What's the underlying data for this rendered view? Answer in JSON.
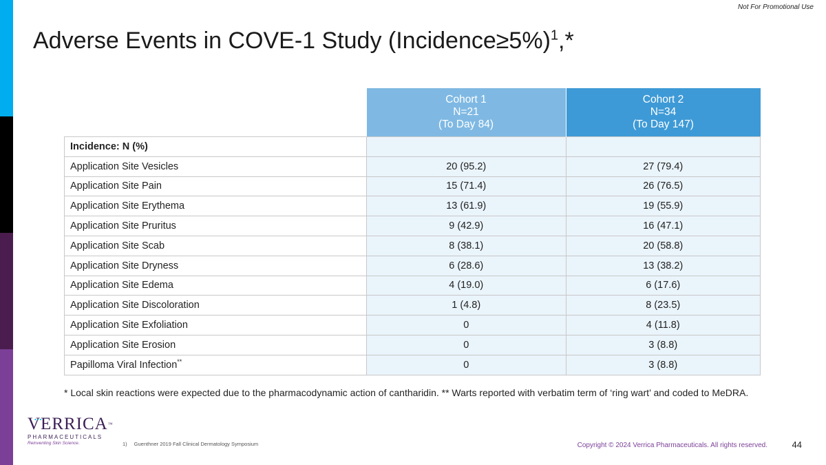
{
  "header": {
    "notice": "Not For Promotional Use",
    "title": "Adverse Events in COVE-1 Study (Incidence≥5%)",
    "title_superscript": "1",
    "title_suffix": ",*"
  },
  "table": {
    "columns": [
      {
        "name": "Cohort 1",
        "n": "N=21",
        "period": "(To Day 84)",
        "color": "#7fb9e3"
      },
      {
        "name": "Cohort 2",
        "n": "N=34",
        "period": "(To Day 147)",
        "color": "#3e9ad6"
      }
    ],
    "section_label": "Incidence: N (%)",
    "rows": [
      {
        "label": "Application Site Vesicles",
        "c1": "20 (95.2)",
        "c2": "27 (79.4)"
      },
      {
        "label": "Application Site Pain",
        "c1": "15 (71.4)",
        "c2": "26 (76.5)"
      },
      {
        "label": "Application Site Erythema",
        "c1": "13 (61.9)",
        "c2": "19 (55.9)"
      },
      {
        "label": "Application Site Pruritus",
        "c1": "9 (42.9)",
        "c2": "16 (47.1)"
      },
      {
        "label": "Application Site Scab",
        "c1": "8 (38.1)",
        "c2": "20 (58.8)"
      },
      {
        "label": "Application Site Dryness",
        "c1": "6 (28.6)",
        "c2": "13 (38.2)"
      },
      {
        "label": "Application Site Edema",
        "c1": "4 (19.0)",
        "c2": "6 (17.6)"
      },
      {
        "label": "Application Site Discoloration",
        "c1": "1 (4.8)",
        "c2": "8 (23.5)"
      },
      {
        "label": "Application Site Exfoliation",
        "c1": "0",
        "c2": "4 (11.8)"
      },
      {
        "label": "Application Site Erosion",
        "c1": "0",
        "c2": "3 (8.8)"
      },
      {
        "label": "Papilloma Viral Infection",
        "label_superscript": "**",
        "c1": "0",
        "c2": "3 (8.8)"
      }
    ]
  },
  "footnote": "* Local skin reactions were expected due to the pharmacodynamic action of cantharidin. ** Warts reported with verbatim term of ‘ring wart’ and coded to MeDRA.",
  "footer": {
    "logo_name": "VERRICA",
    "logo_trademark": "™",
    "logo_subtitle": "PHARMACEUTICALS",
    "logo_tagline": "Reinventing Skin Science.",
    "reference_number": "1)",
    "reference_text": "Guenthner 2019 Fall Clinical Dermatology Symposium",
    "copyright": "Copyright © 2024 Verrica Pharmaceuticals. All rights reserved.",
    "page_number": "44"
  },
  "colors": {
    "stripe_1": "#00aeef",
    "stripe_2": "#000000",
    "stripe_3": "#4a1d4e",
    "stripe_4": "#7b3f98",
    "cell_fill": "#eaf4fb"
  }
}
